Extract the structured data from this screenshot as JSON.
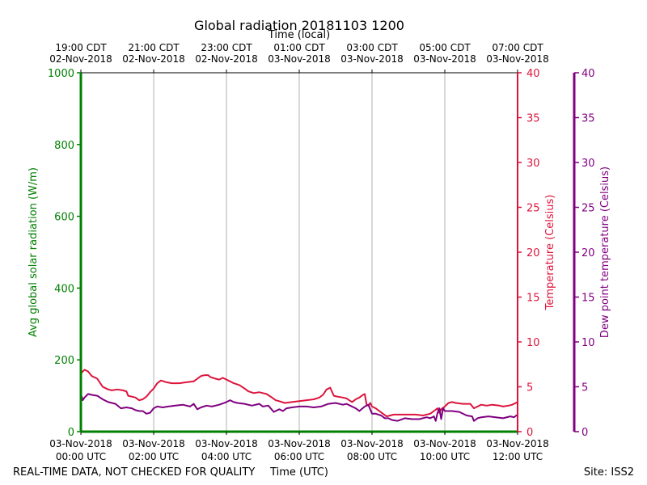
{
  "chart_data": {
    "type": "line",
    "title": "Global radiation 20181103 1200",
    "top_axis_title": "Time (local)",
    "bottom_axis_title": "Time (UTC)",
    "footer_left": "REAL-TIME DATA, NOT CHECKED FOR QUALITY",
    "footer_right": "Site: ISS2",
    "x_range_hours": [
      0,
      12
    ],
    "bottom_ticks": [
      {
        "hour": 0,
        "line1": "03-Nov-2018",
        "line2": "00:00 UTC"
      },
      {
        "hour": 2,
        "line1": "03-Nov-2018",
        "line2": "02:00 UTC"
      },
      {
        "hour": 4,
        "line1": "03-Nov-2018",
        "line2": "04:00 UTC"
      },
      {
        "hour": 6,
        "line1": "03-Nov-2018",
        "line2": "06:00 UTC"
      },
      {
        "hour": 8,
        "line1": "03-Nov-2018",
        "line2": "08:00 UTC"
      },
      {
        "hour": 10,
        "line1": "03-Nov-2018",
        "line2": "10:00 UTC"
      },
      {
        "hour": 12,
        "line1": "03-Nov-2018",
        "line2": "12:00 UTC"
      }
    ],
    "top_ticks": [
      {
        "hour": 0,
        "line1": "19:00 CDT",
        "line2": "02-Nov-2018"
      },
      {
        "hour": 2,
        "line1": "21:00 CDT",
        "line2": "02-Nov-2018"
      },
      {
        "hour": 4,
        "line1": "23:00 CDT",
        "line2": "02-Nov-2018"
      },
      {
        "hour": 6,
        "line1": "01:00 CDT",
        "line2": "03-Nov-2018"
      },
      {
        "hour": 8,
        "line1": "03:00 CDT",
        "line2": "03-Nov-2018"
      },
      {
        "hour": 10,
        "line1": "05:00 CDT",
        "line2": "03-Nov-2018"
      },
      {
        "hour": 12,
        "line1": "07:00 CDT",
        "line2": "03-Nov-2018"
      }
    ],
    "axes": {
      "radiation": {
        "label": "Avg global solar radiation (W/m)",
        "ylim": [
          0,
          1000
        ],
        "ticks": [
          0,
          200,
          400,
          600,
          800,
          1000
        ],
        "color": "#008000"
      },
      "temperature": {
        "label": "Temperature (Celsius)",
        "ylim": [
          0,
          40
        ],
        "ticks": [
          0,
          5,
          10,
          15,
          20,
          25,
          30,
          35,
          40
        ],
        "color": "#dc143c"
      },
      "dewpoint": {
        "label": "Dew point temperature (Celsius)",
        "ylim": [
          0,
          40
        ],
        "ticks": [
          0,
          5,
          10,
          15,
          20,
          25,
          30,
          35,
          40
        ],
        "color": "#800080"
      }
    },
    "series": [
      {
        "name": "Avg global solar radiation",
        "axis": "radiation",
        "color": "#008000",
        "x": [
          0,
          12
        ],
        "y": [
          0,
          0
        ]
      },
      {
        "name": "Temperature",
        "axis": "temperature",
        "color": "#dc143c",
        "x": [
          0,
          0.1,
          0.2,
          0.3,
          0.45,
          0.5,
          0.6,
          0.75,
          0.85,
          1.0,
          1.15,
          1.25,
          1.3,
          1.4,
          1.5,
          1.6,
          1.7,
          1.8,
          1.9,
          2.0,
          2.1,
          2.2,
          2.35,
          2.5,
          2.7,
          2.9,
          3.1,
          3.3,
          3.4,
          3.5,
          3.55,
          3.7,
          3.8,
          3.9,
          4.0,
          4.1,
          4.2,
          4.35,
          4.5,
          4.6,
          4.75,
          4.9,
          5.0,
          5.1,
          5.25,
          5.35,
          5.45,
          5.6,
          5.8,
          6.0,
          6.2,
          6.4,
          6.55,
          6.65,
          6.75,
          6.85,
          6.95,
          7.05,
          7.2,
          7.3,
          7.45,
          7.55,
          7.65,
          7.75,
          7.8,
          7.85,
          7.9,
          7.95,
          8.0,
          8.1,
          8.2,
          8.3,
          8.4,
          8.5,
          8.6,
          8.8,
          9.0,
          9.2,
          9.4,
          9.6,
          9.7,
          9.8,
          9.85,
          9.9,
          10.0,
          10.1,
          10.2,
          10.3,
          10.5,
          10.7,
          10.8,
          10.9,
          11.0,
          11.15,
          11.3,
          11.5,
          11.6,
          11.75,
          11.85,
          11.95,
          12.0
        ],
        "y": [
          6.5,
          6.9,
          6.7,
          6.2,
          5.9,
          5.6,
          5.0,
          4.7,
          4.6,
          4.7,
          4.6,
          4.5,
          4.0,
          3.9,
          3.8,
          3.5,
          3.6,
          3.9,
          4.4,
          4.8,
          5.4,
          5.7,
          5.5,
          5.4,
          5.4,
          5.5,
          5.6,
          6.2,
          6.3,
          6.3,
          6.1,
          5.9,
          5.8,
          6.0,
          5.8,
          5.6,
          5.4,
          5.2,
          4.8,
          4.5,
          4.3,
          4.4,
          4.3,
          4.2,
          3.8,
          3.5,
          3.4,
          3.2,
          3.3,
          3.4,
          3.5,
          3.6,
          3.8,
          4.1,
          4.7,
          4.9,
          4.0,
          3.9,
          3.8,
          3.7,
          3.3,
          3.6,
          3.8,
          4.1,
          4.2,
          3.0,
          2.9,
          3.2,
          2.8,
          2.6,
          2.3,
          2.0,
          1.7,
          1.8,
          1.9,
          1.9,
          1.9,
          1.9,
          1.8,
          2.0,
          2.3,
          2.6,
          2.1,
          2.5,
          2.8,
          3.2,
          3.3,
          3.2,
          3.1,
          3.1,
          2.6,
          2.8,
          3.0,
          2.9,
          3.0,
          2.9,
          2.8,
          2.9,
          3.0,
          3.2,
          3.3
        ]
      },
      {
        "name": "Dew point temperature",
        "axis": "dewpoint",
        "color": "#800080",
        "x": [
          0,
          0.05,
          0.1,
          0.2,
          0.3,
          0.45,
          0.6,
          0.75,
          0.85,
          0.95,
          1.1,
          1.25,
          1.4,
          1.5,
          1.6,
          1.7,
          1.8,
          1.9,
          2.0,
          2.1,
          2.25,
          2.4,
          2.6,
          2.8,
          3.0,
          3.1,
          3.2,
          3.3,
          3.45,
          3.6,
          3.8,
          4.0,
          4.1,
          4.2,
          4.3,
          4.5,
          4.7,
          4.9,
          5.0,
          5.15,
          5.3,
          5.45,
          5.55,
          5.65,
          5.8,
          6.0,
          6.2,
          6.4,
          6.6,
          6.8,
          7.0,
          7.2,
          7.3,
          7.4,
          7.55,
          7.65,
          7.8,
          7.9,
          8.0,
          8.1,
          8.25,
          8.35,
          8.45,
          8.55,
          8.7,
          8.9,
          9.1,
          9.3,
          9.5,
          9.6,
          9.7,
          9.75,
          9.8,
          9.85,
          9.9,
          9.95,
          10.0,
          10.2,
          10.4,
          10.6,
          10.75,
          10.8,
          10.9,
          11.0,
          11.2,
          11.4,
          11.6,
          11.8,
          11.9,
          12.0
        ],
        "y": [
          4.2,
          3.5,
          3.8,
          4.2,
          4.1,
          4.0,
          3.6,
          3.3,
          3.2,
          3.1,
          2.6,
          2.7,
          2.6,
          2.4,
          2.3,
          2.3,
          2.0,
          2.1,
          2.6,
          2.8,
          2.7,
          2.8,
          2.9,
          3.0,
          2.8,
          3.1,
          2.5,
          2.7,
          2.9,
          2.8,
          3.0,
          3.3,
          3.5,
          3.3,
          3.2,
          3.1,
          2.9,
          3.1,
          2.8,
          2.9,
          2.2,
          2.5,
          2.3,
          2.6,
          2.7,
          2.8,
          2.8,
          2.7,
          2.8,
          3.1,
          3.2,
          3.0,
          3.1,
          2.9,
          2.6,
          2.3,
          2.8,
          3.0,
          2.0,
          2.0,
          1.8,
          1.5,
          1.5,
          1.3,
          1.2,
          1.5,
          1.4,
          1.4,
          1.6,
          1.5,
          1.7,
          1.2,
          2.1,
          2.6,
          1.4,
          2.6,
          2.3,
          2.3,
          2.2,
          1.8,
          1.7,
          1.2,
          1.5,
          1.6,
          1.7,
          1.6,
          1.5,
          1.7,
          1.6,
          1.9
        ]
      }
    ]
  }
}
